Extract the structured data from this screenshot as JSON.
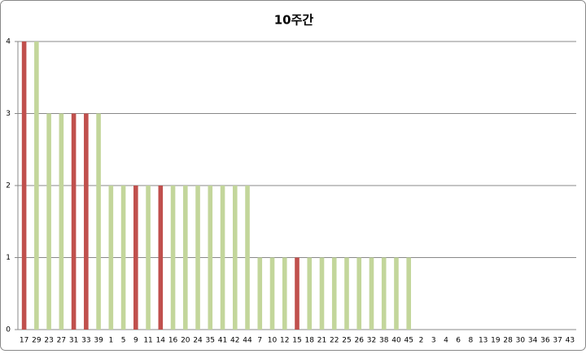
{
  "chart_data": {
    "type": "bar",
    "title": "10주간",
    "categories": [
      "17",
      "29",
      "23",
      "27",
      "31",
      "33",
      "39",
      "1",
      "5",
      "9",
      "11",
      "14",
      "16",
      "20",
      "24",
      "35",
      "41",
      "42",
      "44",
      "7",
      "10",
      "12",
      "15",
      "18",
      "21",
      "22",
      "25",
      "26",
      "32",
      "38",
      "40",
      "45",
      "2",
      "3",
      "4",
      "6",
      "8",
      "13",
      "19",
      "28",
      "30",
      "34",
      "36",
      "37",
      "43"
    ],
    "values": [
      4,
      4,
      3,
      3,
      3,
      3,
      3,
      2,
      2,
      2,
      2,
      2,
      2,
      2,
      2,
      2,
      2,
      2,
      2,
      1,
      1,
      1,
      1,
      1,
      1,
      1,
      1,
      1,
      1,
      1,
      1,
      1,
      0,
      0,
      0,
      0,
      0,
      0,
      0,
      0,
      0,
      0,
      0,
      0,
      0
    ],
    "colors": [
      "#c0504d",
      "#c3d69b",
      "#c3d69b",
      "#c3d69b",
      "#c0504d",
      "#c0504d",
      "#c3d69b",
      "#c3d69b",
      "#c3d69b",
      "#c0504d",
      "#c3d69b",
      "#c0504d",
      "#c3d69b",
      "#c3d69b",
      "#c3d69b",
      "#c3d69b",
      "#c3d69b",
      "#c3d69b",
      "#c3d69b",
      "#c3d69b",
      "#c3d69b",
      "#c3d69b",
      "#c0504d",
      "#c3d69b",
      "#c3d69b",
      "#c3d69b",
      "#c3d69b",
      "#c3d69b",
      "#c3d69b",
      "#c3d69b",
      "#c3d69b",
      "#c3d69b",
      "#c3d69b",
      "#c3d69b",
      "#c3d69b",
      "#c3d69b",
      "#c3d69b",
      "#c3d69b",
      "#c3d69b",
      "#c3d69b",
      "#c3d69b",
      "#c3d69b",
      "#c3d69b",
      "#c3d69b",
      "#c3d69b"
    ],
    "ylim": [
      0,
      4
    ],
    "yticks": [
      0,
      1,
      2,
      3,
      4
    ],
    "grid": true
  }
}
